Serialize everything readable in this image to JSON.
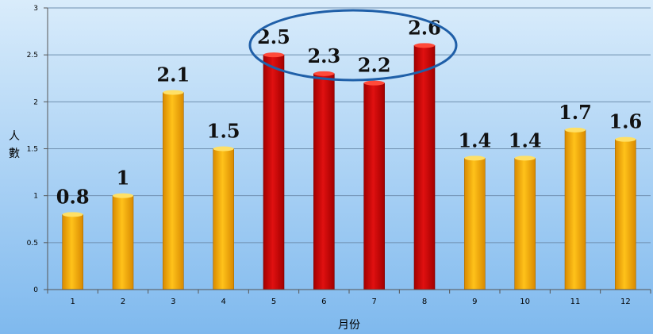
{
  "chart_data": {
    "type": "bar",
    "title": "",
    "xlabel": "月份",
    "ylabel": "人數",
    "categories": [
      "1",
      "2",
      "3",
      "4",
      "5",
      "6",
      "7",
      "8",
      "9",
      "10",
      "11",
      "12"
    ],
    "values": [
      0.8,
      1,
      2.1,
      1.5,
      2.5,
      2.3,
      2.2,
      2.6,
      1.4,
      1.4,
      1.7,
      1.6
    ],
    "value_labels": [
      "0.8",
      "1",
      "2.1",
      "1.5",
      "2.5",
      "2.3",
      "2.2",
      "2.6",
      "1.4",
      "1.4",
      "1.7",
      "1.6"
    ],
    "y_ticks": [
      "0",
      "0.5",
      "1",
      "1.5",
      "2",
      "2.5",
      "3"
    ],
    "ylim": [
      0,
      3
    ],
    "grid": true,
    "bar_colors": [
      "#f6a800",
      "#f6a800",
      "#f6a800",
      "#f6a800",
      "#cc0000",
      "#cc0000",
      "#cc0000",
      "#cc0000",
      "#f6a800",
      "#f6a800",
      "#f6a800",
      "#f6a800"
    ],
    "highlight_ellipse_color": "#1f5fa8",
    "background_top": "#d9ecfb",
    "background_bottom": "#7fb9ee"
  }
}
